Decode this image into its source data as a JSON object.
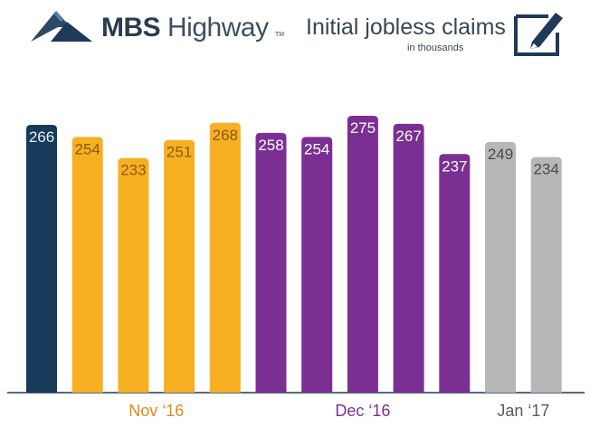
{
  "header": {
    "logo_bold": "MBS",
    "logo_light": "Highway",
    "logo_tm": "TM",
    "title": "Initial jobless claims",
    "subtitle": "in thousands"
  },
  "chart_data": {
    "type": "bar",
    "title": "Initial jobless claims",
    "subtitle": "in thousands",
    "ylim": [
      0,
      275
    ],
    "grid": false,
    "legend": "none",
    "values": [
      266,
      254,
      233,
      251,
      268,
      258,
      254,
      275,
      267,
      237,
      249,
      234
    ],
    "bar_colors": [
      "#173a5a",
      "#f7b022",
      "#f7b022",
      "#f7b022",
      "#f7b022",
      "#7b2f93",
      "#7b2f93",
      "#7b2f93",
      "#7b2f93",
      "#7b2f93",
      "#b7b7b7",
      "#b7b7b7"
    ],
    "label_colors": [
      "#e8f0f8",
      "#8a5a00",
      "#8a5a00",
      "#8a5a00",
      "#8a5a00",
      "#ffffff",
      "#ffffff",
      "#ffffff",
      "#ffffff",
      "#ffffff",
      "#4a4a4a",
      "#4a4a4a"
    ],
    "groups": [
      {
        "label": "Nov ‘16",
        "color": "#e08a1e",
        "start": 1,
        "end": 4
      },
      {
        "label": "Dec ‘16",
        "color": "#7b2f93",
        "start": 5,
        "end": 9
      },
      {
        "label": "Jan ‘17",
        "color": "#5a5a5a",
        "start": 10,
        "end": 11
      }
    ]
  },
  "colors": {
    "logo_blue": "#1f3a58",
    "axis": "#1f3a58"
  },
  "icons": [
    "mbs-logo-icon",
    "pen-icon"
  ]
}
